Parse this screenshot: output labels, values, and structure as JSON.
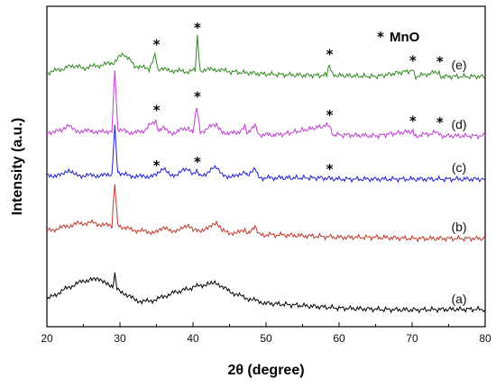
{
  "chart_data": {
    "type": "line",
    "xlabel": "2θ (degree)",
    "ylabel": "Intensity (a.u.)",
    "xlim": [
      20,
      80
    ],
    "xticks": [
      "20",
      "30",
      "40",
      "50",
      "60",
      "70",
      "80"
    ],
    "y_ticks_shown": false,
    "grid": false,
    "legend": {
      "symbol": "*",
      "text": "MnO",
      "position": "top-right"
    },
    "series": [
      {
        "label": "(a)",
        "color": "#000000",
        "baseline": 0,
        "points": [
          [
            20,
            0.9
          ],
          [
            22,
            1.6
          ],
          [
            24,
            2.2
          ],
          [
            26,
            2.6
          ],
          [
            27,
            2.6
          ],
          [
            28,
            2.3
          ],
          [
            29,
            1.9
          ],
          [
            29.3,
            3.1
          ],
          [
            29.6,
            1.9
          ],
          [
            31,
            1.2
          ],
          [
            33,
            0.7
          ],
          [
            35,
            0.9
          ],
          [
            37,
            1.4
          ],
          [
            40,
            1.9
          ],
          [
            42,
            2.2
          ],
          [
            43,
            2.3
          ],
          [
            44,
            1.9
          ],
          [
            46,
            1.3
          ],
          [
            48,
            0.9
          ],
          [
            50,
            0.6
          ],
          [
            55,
            0.4
          ],
          [
            60,
            0.2
          ],
          [
            65,
            0.1
          ],
          [
            70,
            0.05
          ],
          [
            75,
            0.1
          ],
          [
            80,
            0.1
          ]
        ]
      },
      {
        "label": "(b)",
        "color": "#c0392b",
        "baseline": 4,
        "points": [
          [
            20,
            0.6
          ],
          [
            22,
            0.9
          ],
          [
            24,
            1.2
          ],
          [
            26,
            1.3
          ],
          [
            28,
            1.1
          ],
          [
            28.9,
            1.0
          ],
          [
            29.3,
            4.6
          ],
          [
            29.7,
            1.1
          ],
          [
            31,
            0.8
          ],
          [
            33,
            0.6
          ],
          [
            35,
            0.5
          ],
          [
            36,
            0.8
          ],
          [
            38,
            0.6
          ],
          [
            39.4,
            1.1
          ],
          [
            40,
            0.6
          ],
          [
            42,
            0.8
          ],
          [
            43.2,
            1.2
          ],
          [
            44,
            0.6
          ],
          [
            46,
            0.4
          ],
          [
            47.1,
            0.8
          ],
          [
            47.5,
            0.3
          ],
          [
            48.5,
            0.9
          ],
          [
            49,
            0.3
          ],
          [
            52,
            0.3
          ],
          [
            56,
            0.2
          ],
          [
            60,
            0.1
          ],
          [
            65,
            0.1
          ],
          [
            70,
            0.0
          ],
          [
            75,
            0.0
          ],
          [
            80,
            0.0
          ]
        ]
      },
      {
        "label": "(c)",
        "color": "#1f1fd1",
        "baseline": 7.5,
        "points": [
          [
            20,
            0.3
          ],
          [
            22,
            0.3
          ],
          [
            23,
            0.6
          ],
          [
            24,
            0.3
          ],
          [
            26,
            0.3
          ],
          [
            28,
            0.3
          ],
          [
            28.9,
            0.4
          ],
          [
            29.3,
            4.3
          ],
          [
            29.7,
            0.6
          ],
          [
            31,
            0.3
          ],
          [
            33,
            0.2
          ],
          [
            35,
            0.3
          ],
          [
            36,
            0.8
          ],
          [
            37,
            0.2
          ],
          [
            39.4,
            0.9
          ],
          [
            40,
            0.3
          ],
          [
            40.5,
            0.6
          ],
          [
            41,
            0.2
          ],
          [
            43.2,
            1.0
          ],
          [
            44,
            0.3
          ],
          [
            46,
            0.2
          ],
          [
            47.1,
            0.7
          ],
          [
            47.5,
            0.2
          ],
          [
            48.5,
            0.8
          ],
          [
            49,
            0.1
          ],
          [
            52,
            0.1
          ],
          [
            57.5,
            0.1
          ],
          [
            60,
            0.0
          ],
          [
            65,
            0.0
          ],
          [
            70,
            0.0
          ],
          [
            75,
            0.0
          ],
          [
            80,
            0.0
          ]
        ]
      },
      {
        "label": "(d)",
        "color": "#c23bd4",
        "baseline": 11.3,
        "points": [
          [
            20,
            0.3
          ],
          [
            22,
            0.4
          ],
          [
            23,
            0.9
          ],
          [
            24,
            0.4
          ],
          [
            26,
            0.4
          ],
          [
            28,
            0.3
          ],
          [
            28.9,
            0.5
          ],
          [
            29.3,
            5.4
          ],
          [
            29.7,
            0.6
          ],
          [
            31,
            0.3
          ],
          [
            33,
            0.3
          ],
          [
            34.9,
            1.3
          ],
          [
            35.3,
            0.3
          ],
          [
            36,
            0.7
          ],
          [
            37,
            0.2
          ],
          [
            39.4,
            0.7
          ],
          [
            40,
            0.3
          ],
          [
            40.5,
            2.4
          ],
          [
            41,
            0.3
          ],
          [
            43.2,
            1.0
          ],
          [
            44,
            0.3
          ],
          [
            46,
            0.2
          ],
          [
            47.1,
            0.8
          ],
          [
            47.5,
            0.2
          ],
          [
            48.5,
            0.9
          ],
          [
            49,
            0.1
          ],
          [
            52,
            0.1
          ],
          [
            58.7,
            0.9
          ],
          [
            59.2,
            0.1
          ],
          [
            65,
            0.0
          ],
          [
            70.1,
            0.4
          ],
          [
            70.5,
            0.0
          ],
          [
            73.7,
            0.3
          ],
          [
            74,
            0.0
          ],
          [
            80,
            0.0
          ]
        ]
      },
      {
        "label": "(e)",
        "color": "#2e8b1e",
        "baseline": 15.6,
        "points": [
          [
            20,
            0.3
          ],
          [
            22,
            0.6
          ],
          [
            23.5,
            0.9
          ],
          [
            25,
            0.7
          ],
          [
            27,
            0.9
          ],
          [
            29,
            1.1
          ],
          [
            30.5,
            1.9
          ],
          [
            32,
            0.9
          ],
          [
            34,
            0.6
          ],
          [
            34.8,
            1.8
          ],
          [
            35.2,
            0.6
          ],
          [
            37,
            0.5
          ],
          [
            39,
            0.4
          ],
          [
            40.3,
            0.5
          ],
          [
            40.6,
            3.2
          ],
          [
            41,
            0.5
          ],
          [
            43,
            0.6
          ],
          [
            45,
            0.4
          ],
          [
            50,
            0.2
          ],
          [
            55,
            0.1
          ],
          [
            58.3,
            0.1
          ],
          [
            58.7,
            1.0
          ],
          [
            59.1,
            0.1
          ],
          [
            65,
            0.0
          ],
          [
            70.1,
            0.5
          ],
          [
            70.5,
            0.0
          ],
          [
            73.7,
            0.4
          ],
          [
            74,
            0.0
          ],
          [
            80,
            0.0
          ]
        ]
      }
    ],
    "markers": [
      {
        "symbol": "*",
        "x": 35.0,
        "series": "(e)"
      },
      {
        "symbol": "*",
        "x": 40.6,
        "series": "(e)"
      },
      {
        "symbol": "*",
        "x": 58.7,
        "series": "(e)"
      },
      {
        "symbol": "*",
        "x": 70.1,
        "series": "(e)"
      },
      {
        "symbol": "*",
        "x": 73.8,
        "series": "(e)"
      },
      {
        "symbol": "*",
        "x": 35.0,
        "series": "(d)"
      },
      {
        "symbol": "*",
        "x": 40.6,
        "series": "(d)"
      },
      {
        "symbol": "*",
        "x": 58.7,
        "series": "(d)"
      },
      {
        "symbol": "*",
        "x": 70.1,
        "series": "(d)"
      },
      {
        "symbol": "*",
        "x": 73.8,
        "series": "(d)"
      },
      {
        "symbol": "*",
        "x": 35.0,
        "series": "(c)"
      },
      {
        "symbol": "*",
        "x": 40.6,
        "series": "(c)"
      },
      {
        "symbol": "*",
        "x": 58.7,
        "series": "(c)"
      }
    ]
  }
}
